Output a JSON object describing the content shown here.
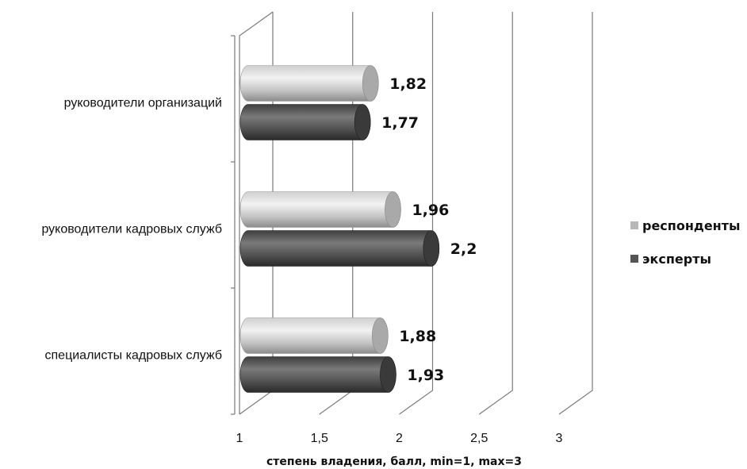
{
  "chart_data": {
    "type": "bar",
    "orientation": "horizontal",
    "style": "3d-cylinder",
    "categories": [
      "руководители организаций",
      "руководители кадровых служб",
      "специалисты кадровых служб"
    ],
    "series": [
      {
        "name": "респонденты",
        "values": [
          1.82,
          1.96,
          1.88
        ],
        "labels": [
          "1,82",
          "1,96",
          "1,88"
        ],
        "color": "#b8b8b8"
      },
      {
        "name": "эксперты",
        "values": [
          1.77,
          2.2,
          1.93
        ],
        "labels": [
          "1,77",
          "2,2",
          "1,93"
        ],
        "color": "#555555"
      }
    ],
    "xlim": [
      1,
      3
    ],
    "xticks": [
      1,
      1.5,
      2,
      2.5,
      3
    ],
    "xtick_labels": [
      "1",
      "1,5",
      "2",
      "2,5",
      "3"
    ],
    "xlabel": "степень владения, балл,  min=1, max=3",
    "grid": true,
    "legend_position": "right"
  }
}
